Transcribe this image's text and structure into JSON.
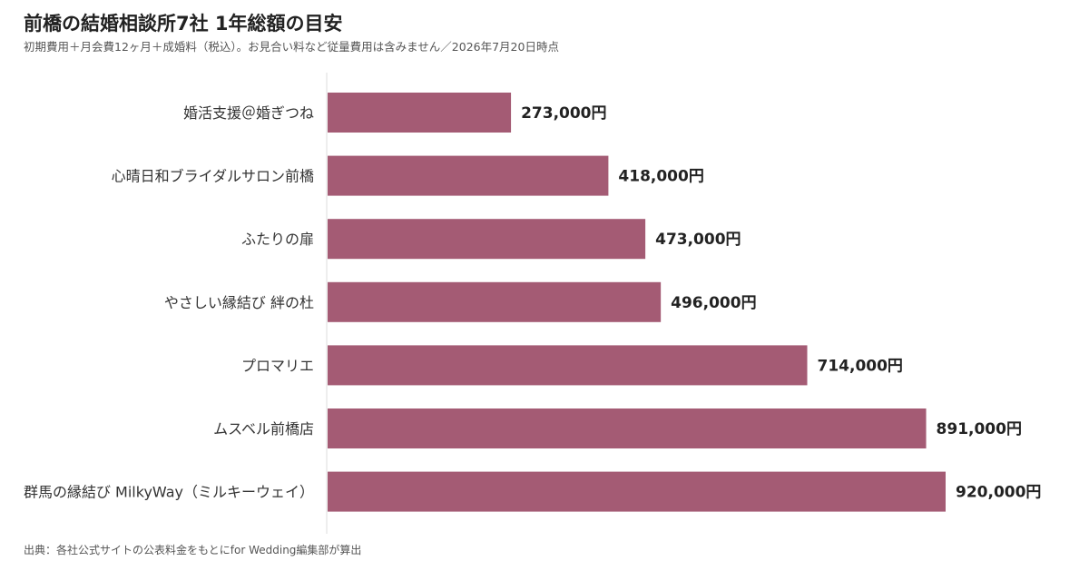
{
  "title": "前橋の結婚相談所7社 1年総額の目安",
  "subtitle": "初期費用＋月会費12ヶ月＋成婚料（税込）。お見合い料など従量費用は含みません／2026年7月20日時点",
  "source": "出典：各社公式サイトの公表料金をもとにfor Wedding編集部が算出",
  "chart_data": {
    "type": "bar",
    "orientation": "horizontal",
    "categories": [
      "婚活支援＠婚ぎつね",
      "心晴日和ブライダルサロン前橋",
      "ふたりの扉",
      "やさしい縁結び 絆の杜",
      "プロマリエ",
      "ムスベル前橋店",
      "群馬の縁結び MilkyWay（ミルキーウェイ）"
    ],
    "values": [
      273000,
      418000,
      473000,
      496000,
      714000,
      891000,
      920000
    ],
    "value_labels": [
      "273,000円",
      "418,000円",
      "473,000円",
      "496,000円",
      "714,000円",
      "891,000円",
      "920,000円"
    ],
    "xlim": [
      0,
      920000
    ],
    "grid": false,
    "bar_color": "#a45b74"
  }
}
